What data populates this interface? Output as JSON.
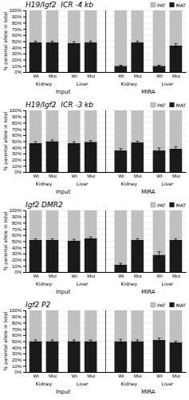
{
  "chart_data": [
    {
      "type": "bar",
      "stacked": true,
      "title": "H19/Igf2  ICR -4 kb",
      "ylabel": "% parental allele in total",
      "categories": [
        "Wt",
        "Mut",
        "Wt",
        "Mut",
        "Wt",
        "Mut",
        "Wt",
        "Mut"
      ],
      "group_labels": [
        "Kidney",
        "Liver",
        "Kidney",
        "Liver"
      ],
      "section_labels": [
        "Input",
        "MIRA"
      ],
      "series": [
        {
          "name": "MAT",
          "color": "#1a1a1a",
          "values": [
            48,
            48,
            47,
            48,
            10,
            48,
            10,
            43
          ],
          "errors": [
            2,
            2,
            2,
            2,
            1,
            2,
            1,
            3
          ]
        },
        {
          "name": "PAT",
          "color": "#c0c0c0",
          "values": [
            52,
            52,
            53,
            52,
            90,
            52,
            90,
            57
          ]
        }
      ],
      "ylim": [
        0,
        100
      ],
      "yticks": [
        {
          "value": 0,
          "label": "0%"
        },
        {
          "value": 10,
          "label": "10%"
        },
        {
          "value": 20,
          "label": "20%"
        },
        {
          "value": 30,
          "label": "30%"
        },
        {
          "value": 40,
          "label": "40%"
        },
        {
          "value": 50,
          "label": "50%"
        },
        {
          "value": 60,
          "label": "60%"
        },
        {
          "value": 70,
          "label": "70%"
        },
        {
          "value": 80,
          "label": "80%"
        },
        {
          "value": 90,
          "label": "90%"
        },
        {
          "value": 100,
          "label": "100%"
        }
      ],
      "grid": true,
      "legend": "upper right"
    },
    {
      "type": "bar",
      "stacked": true,
      "title": "H19/Igf2  ICR -3 kb",
      "ylabel": "% parental allele in total",
      "categories": [
        "Wt",
        "Mut",
        "Wt",
        "Mut",
        "Wt",
        "Mut",
        "Wt",
        "Mut"
      ],
      "group_labels": [
        "Kidney",
        "Liver",
        "Kidney",
        "Liver"
      ],
      "section_labels": [
        "Input",
        "MIRA"
      ],
      "series": [
        {
          "name": "MAT",
          "color": "#1a1a1a",
          "values": [
            47,
            50,
            47,
            49,
            35,
            48,
            35,
            38
          ],
          "errors": [
            2,
            2,
            2,
            2,
            3,
            2,
            4,
            3
          ]
        },
        {
          "name": "PAT",
          "color": "#c0c0c0",
          "values": [
            53,
            50,
            53,
            51,
            65,
            52,
            65,
            62
          ]
        }
      ],
      "ylim": [
        0,
        100
      ],
      "yticks": [
        {
          "value": 0,
          "label": "0%"
        },
        {
          "value": 10,
          "label": "10%"
        },
        {
          "value": 20,
          "label": "20%"
        },
        {
          "value": 30,
          "label": "30%"
        },
        {
          "value": 40,
          "label": "40%"
        },
        {
          "value": 50,
          "label": "50%"
        },
        {
          "value": 60,
          "label": "60%"
        },
        {
          "value": 70,
          "label": "70%"
        },
        {
          "value": 80,
          "label": "80%"
        },
        {
          "value": 90,
          "label": "90%"
        },
        {
          "value": 100,
          "label": "100%"
        }
      ],
      "grid": true,
      "legend": "upper right"
    },
    {
      "type": "bar",
      "stacked": true,
      "title": "Igf2 DMR2",
      "ylabel": "% parental allele in total",
      "categories": [
        "Wt",
        "Mut",
        "Wt",
        "Mut",
        "Wt",
        "Mut",
        "Wt",
        "Mut"
      ],
      "group_labels": [
        "Kidney",
        "Liver",
        "Kidney",
        "Liver"
      ],
      "section_labels": [
        "Input",
        "MIRA"
      ],
      "series": [
        {
          "name": "MAT",
          "color": "#1a1a1a",
          "values": [
            52,
            52,
            51,
            55,
            12,
            52,
            28,
            52
          ],
          "errors": [
            2,
            2,
            2,
            2,
            2,
            2,
            5,
            2
          ]
        },
        {
          "name": "PAT",
          "color": "#c0c0c0",
          "values": [
            48,
            48,
            49,
            45,
            88,
            48,
            72,
            48
          ]
        }
      ],
      "ylim": [
        0,
        100
      ],
      "yticks": [
        {
          "value": 0,
          "label": "0%"
        },
        {
          "value": 10,
          "label": "10%"
        },
        {
          "value": 20,
          "label": "20%"
        },
        {
          "value": 30,
          "label": "30%"
        },
        {
          "value": 40,
          "label": "40%"
        },
        {
          "value": 50,
          "label": "50%"
        },
        {
          "value": 60,
          "label": "60%"
        },
        {
          "value": 70,
          "label": "70%"
        },
        {
          "value": 80,
          "label": "80%"
        },
        {
          "value": 90,
          "label": "90%"
        },
        {
          "value": 100,
          "label": "100%"
        }
      ],
      "grid": true,
      "legend": "upper right"
    },
    {
      "type": "bar",
      "stacked": true,
      "title": "Igf2 P2",
      "ylabel": "% parental allele in total",
      "categories": [
        "Wt",
        "Mut",
        "Wt",
        "Mut",
        "Wt",
        "Mut",
        "Wt",
        "Mut"
      ],
      "group_labels": [
        "Kidney",
        "Liver",
        "Kidney",
        "Liver"
      ],
      "section_labels": [
        "Input",
        "MIRA"
      ],
      "series": [
        {
          "name": "MAT",
          "color": "#1a1a1a",
          "values": [
            50,
            50,
            50,
            50,
            50,
            50,
            52,
            48
          ],
          "errors": [
            2,
            2,
            2,
            2,
            3,
            2,
            3,
            2
          ]
        },
        {
          "name": "PAT",
          "color": "#c0c0c0",
          "values": [
            50,
            50,
            50,
            50,
            50,
            50,
            48,
            52
          ]
        }
      ],
      "ylim": [
        0,
        100
      ],
      "yticks": [
        {
          "value": 0,
          "label": "0%"
        },
        {
          "value": 10,
          "label": "10%"
        },
        {
          "value": 20,
          "label": "20%"
        },
        {
          "value": 30,
          "label": "30%"
        },
        {
          "value": 40,
          "label": "40%"
        },
        {
          "value": 50,
          "label": "50%"
        },
        {
          "value": 60,
          "label": "60%"
        },
        {
          "value": 70,
          "label": "70%"
        },
        {
          "value": 80,
          "label": "80%"
        },
        {
          "value": 90,
          "label": "90%"
        },
        {
          "value": 100,
          "label": "100%"
        }
      ],
      "grid": true,
      "legend": "upper right"
    }
  ]
}
